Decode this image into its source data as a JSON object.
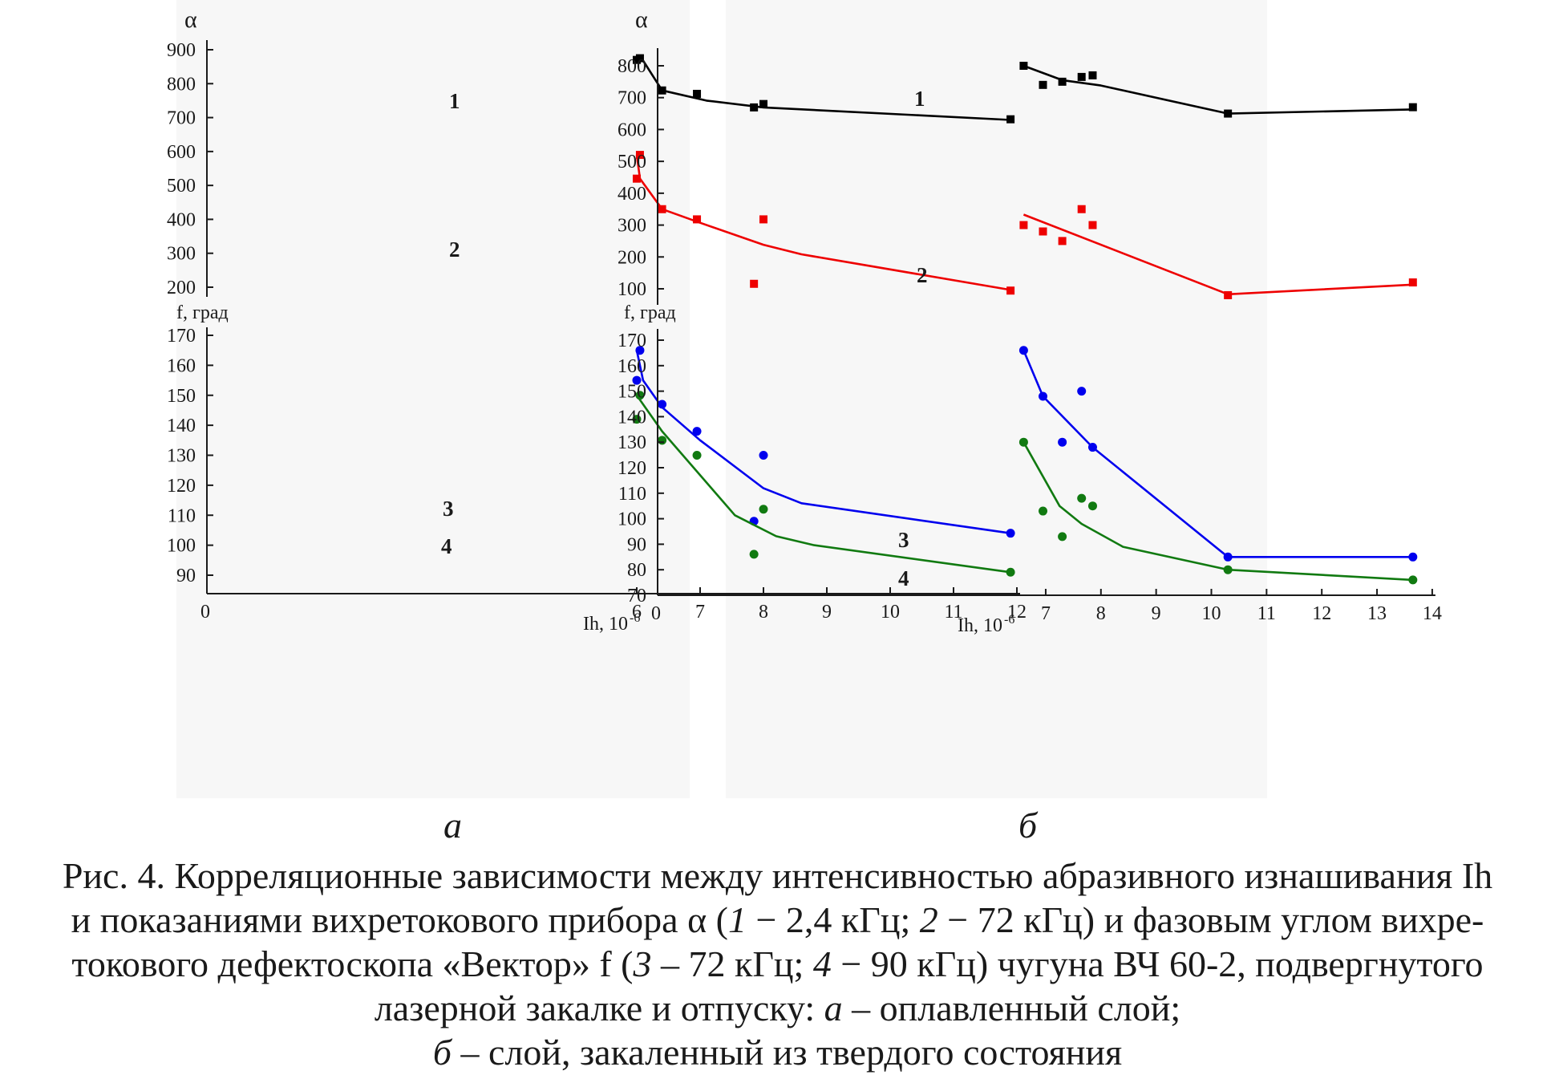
{
  "colors": {
    "series1": "#000000",
    "series2": "#ee0000",
    "series3": "#0000ee",
    "series4": "#117a11",
    "axis": "#1a1a1a",
    "panel_bg": "#f7f7f7"
  },
  "panel_labels": {
    "a": "а",
    "b": "б"
  },
  "caption": {
    "line1": "Рис. 4. Корреляционные зависимости между интенсивностью абразивного изнашивания Ih",
    "line2a": "и показаниями вихретокового прибора α (",
    "line2_n1": "1",
    "line2b": " − 2,4 кГц; ",
    "line2_n2": "2",
    "line2c": " − 72 кГц) и фазовым углом вихре-",
    "line3a": "токового дефектоскопа «Вектор» f (",
    "line3_n3": "3",
    "line3b": " – 72 кГц; ",
    "line3_n4": "4",
    "line3c": " − 90 кГц) чугуна ВЧ 60-2, подвергнутого",
    "line4a": "лазерной закалке и отпуску: ",
    "line4_a": "а",
    "line4b": " – оплавленный слой;",
    "line5_b": "б",
    "line5b": " – слой, закаленный из твердого состояния"
  },
  "chart_data": [
    {
      "id": "a-top",
      "panel": "а",
      "type": "scatter",
      "ylabel": "α",
      "xlim": [
        0,
        12
      ],
      "ylim": [
        160,
        900
      ],
      "yticks": [
        200,
        300,
        400,
        500,
        600,
        700,
        800,
        900
      ],
      "series": [
        {
          "name": "1",
          "color": "#000000",
          "marker": "square",
          "points": [
            [
              6.0,
              870
            ],
            [
              6.05,
              875
            ],
            [
              6.4,
              780
            ],
            [
              6.95,
              770
            ],
            [
              7.85,
              730
            ],
            [
              8.0,
              740
            ],
            [
              11.9,
              695
            ]
          ],
          "fit": [
            [
              6.0,
              870
            ],
            [
              6.1,
              868
            ],
            [
              6.4,
              780
            ],
            [
              7.1,
              750
            ],
            [
              8.0,
              730
            ],
            [
              11.9,
              693
            ]
          ]
        },
        {
          "name": "2",
          "color": "#ee0000",
          "marker": "square",
          "points": [
            [
              6.0,
              520
            ],
            [
              6.05,
              590
            ],
            [
              6.4,
              430
            ],
            [
              6.95,
              400
            ],
            [
              7.85,
              210
            ],
            [
              8.0,
              400
            ],
            [
              11.9,
              190
            ]
          ],
          "fit": [
            [
              6.0,
              590
            ],
            [
              6.05,
              520
            ],
            [
              6.4,
              430
            ],
            [
              7.0,
              390
            ],
            [
              8.0,
              325
            ],
            [
              8.6,
              297
            ],
            [
              11.9,
              192
            ]
          ]
        }
      ]
    },
    {
      "id": "a-bottom",
      "panel": "а",
      "type": "scatter",
      "ylabel": "f, град",
      "xlabel": "Ih, 10",
      "xlabel_exp": "-6",
      "xlim": [
        0,
        12
      ],
      "ylim": [
        85,
        170
      ],
      "xticks": [
        0,
        6,
        7,
        8,
        9,
        10,
        11,
        12
      ],
      "yticks": [
        90,
        100,
        110,
        120,
        130,
        140,
        150,
        160,
        170
      ],
      "series": [
        {
          "name": "3",
          "color": "#0000ee",
          "marker": "circle",
          "points": [
            [
              6.0,
              155
            ],
            [
              6.05,
              165
            ],
            [
              6.4,
              147
            ],
            [
              6.95,
              138
            ],
            [
              7.85,
              108
            ],
            [
              8.0,
              130
            ],
            [
              11.9,
              104
            ]
          ],
          "fit": [
            [
              6.0,
              165
            ],
            [
              6.1,
              155
            ],
            [
              6.4,
              146
            ],
            [
              7.0,
              135
            ],
            [
              8.0,
              119
            ],
            [
              8.6,
              114
            ],
            [
              11.9,
              104
            ]
          ]
        },
        {
          "name": "4",
          "color": "#117a11",
          "marker": "circle",
          "points": [
            [
              6.0,
              142
            ],
            [
              6.05,
              150
            ],
            [
              6.4,
              135
            ],
            [
              6.95,
              130
            ],
            [
              7.85,
              97
            ],
            [
              8.0,
              112
            ],
            [
              11.9,
              91
            ]
          ],
          "fit": [
            [
              6.0,
              150
            ],
            [
              6.4,
              138
            ],
            [
              7.55,
              110
            ],
            [
              8.2,
              103
            ],
            [
              8.8,
              100
            ],
            [
              11.9,
              91
            ]
          ]
        }
      ]
    },
    {
      "id": "b-top",
      "panel": "б",
      "type": "scatter",
      "ylabel": "α",
      "xlim": [
        0,
        14
      ],
      "ylim": [
        50,
        820
      ],
      "yticks": [
        100,
        200,
        300,
        400,
        500,
        600,
        700,
        800
      ],
      "series": [
        {
          "name": "1",
          "color": "#000000",
          "marker": "square",
          "points": [
            [
              6.6,
              800
            ],
            [
              6.95,
              740
            ],
            [
              7.3,
              750
            ],
            [
              7.65,
              765
            ],
            [
              7.85,
              770
            ],
            [
              10.3,
              650
            ],
            [
              13.65,
              670
            ]
          ],
          "fit": [
            [
              6.6,
              800
            ],
            [
              7.3,
              755
            ],
            [
              8.0,
              738
            ],
            [
              10.3,
              650
            ],
            [
              13.65,
              663
            ]
          ]
        },
        {
          "name": "2",
          "color": "#ee0000",
          "marker": "square",
          "points": [
            [
              6.6,
              300
            ],
            [
              6.95,
              280
            ],
            [
              7.3,
              250
            ],
            [
              7.65,
              350
            ],
            [
              7.85,
              300
            ],
            [
              10.3,
              80
            ],
            [
              13.65,
              120
            ]
          ],
          "fit": [
            [
              6.6,
              333
            ],
            [
              10.3,
              83
            ],
            [
              13.65,
              113
            ]
          ]
        }
      ]
    },
    {
      "id": "b-bottom",
      "panel": "б",
      "type": "scatter",
      "ylabel": "f, град",
      "xlabel": "Ih, 10",
      "xlabel_exp": "-6",
      "xlim": [
        0,
        14
      ],
      "ylim": [
        70,
        170
      ],
      "xticks": [
        0,
        7,
        8,
        9,
        10,
        11,
        12,
        13,
        14
      ],
      "yticks": [
        70,
        80,
        90,
        100,
        110,
        120,
        130,
        140,
        150,
        160,
        170
      ],
      "series": [
        {
          "name": "3",
          "color": "#0000ee",
          "marker": "circle",
          "points": [
            [
              6.6,
              166
            ],
            [
              6.95,
              148
            ],
            [
              7.3,
              130
            ],
            [
              7.65,
              150
            ],
            [
              7.85,
              128
            ],
            [
              10.3,
              85
            ],
            [
              13.65,
              85
            ]
          ],
          "fit": [
            [
              6.6,
              166
            ],
            [
              6.95,
              148
            ],
            [
              7.85,
              128
            ],
            [
              10.3,
              85
            ],
            [
              13.65,
              85
            ]
          ]
        },
        {
          "name": "4",
          "color": "#117a11",
          "marker": "circle",
          "points": [
            [
              6.6,
              130
            ],
            [
              6.95,
              103
            ],
            [
              7.3,
              93
            ],
            [
              7.65,
              108
            ],
            [
              7.85,
              105
            ],
            [
              10.3,
              80
            ],
            [
              13.65,
              76
            ]
          ],
          "fit": [
            [
              6.6,
              130
            ],
            [
              7.25,
              105
            ],
            [
              7.65,
              98
            ],
            [
              8.4,
              89
            ],
            [
              10.3,
              80
            ],
            [
              13.65,
              76
            ]
          ]
        }
      ]
    }
  ]
}
